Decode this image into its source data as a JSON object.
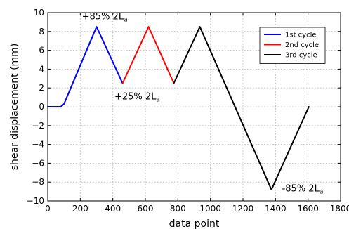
{
  "chart_data": {
    "type": "line",
    "xlabel": "data point",
    "ylabel": "shear displacement (mm)",
    "xlim": [
      0,
      1800
    ],
    "ylim": [
      -10,
      10
    ],
    "xticks": [
      0,
      200,
      400,
      600,
      800,
      1000,
      1200,
      1400,
      1600,
      1800
    ],
    "yticks": [
      -10,
      -8,
      -6,
      -4,
      -2,
      0,
      2,
      4,
      6,
      8,
      10
    ],
    "grid": true,
    "legend_position": "top-right",
    "series": [
      {
        "name": "1st cycle",
        "color": "#0000ff",
        "x": [
          0,
          40,
          80,
          100,
          300,
          460
        ],
        "y": [
          0,
          0,
          0,
          0.3,
          8.5,
          2.5
        ]
      },
      {
        "name": "2nd cycle",
        "color": "#ff0000",
        "x": [
          460,
          620,
          775
        ],
        "y": [
          2.5,
          8.5,
          2.5
        ]
      },
      {
        "name": "3rd cycle",
        "color": "#000000",
        "x": [
          775,
          935,
          1375,
          1605
        ],
        "y": [
          2.5,
          8.5,
          -8.8,
          0
        ]
      }
    ],
    "annotations": [
      {
        "text": "+85% 2L",
        "subscript": "a",
        "x": 210,
        "y": 9.3
      },
      {
        "text": "+25% 2L",
        "subscript": "a",
        "x": 410,
        "y": 0.8
      },
      {
        "text": "-85% 2L",
        "subscript": "a",
        "x": 1440,
        "y": -9.0
      }
    ]
  }
}
